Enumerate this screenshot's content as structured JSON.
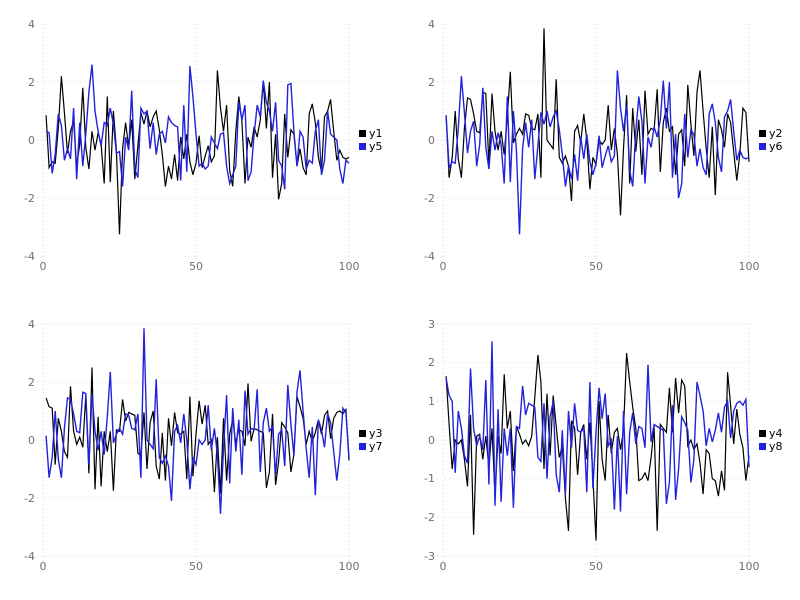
{
  "palette": {
    "background": "#ffffff",
    "series_black": "#000000",
    "series_blue": "#2222dd",
    "grid_color": "#d8d8e2",
    "tick_label_color": "#707070",
    "legend_text_color": "#000000"
  },
  "chart_data": [
    {
      "type": "line",
      "position": "top-left",
      "title": "",
      "xlabel": "",
      "ylabel": "",
      "x_range": [
        0,
        100
      ],
      "y_range": [
        -4,
        4
      ],
      "xticks": [
        0,
        50,
        100
      ],
      "yticks": [
        -4,
        -2,
        0,
        2,
        4
      ],
      "grid": true,
      "legend_position": "right-center",
      "x_start": 1,
      "series": [
        {
          "name": "y1",
          "color_key": "series_black",
          "values": [
            0.85,
            -0.95,
            -0.75,
            -0.8,
            0.4,
            2.2,
            0.95,
            -0.45,
            0.3,
            0.65,
            -0.9,
            -0.15,
            1.8,
            -0.25,
            -1.0,
            0.3,
            -0.35,
            0.25,
            -0.15,
            -1.5,
            1.5,
            -1.45,
            1.0,
            -0.35,
            -3.25,
            -0.3,
            0.6,
            -0.25,
            0.7,
            -1.35,
            -0.2,
            0.95,
            0.55,
            1.0,
            0.45,
            0.8,
            1.0,
            0.35,
            -0.5,
            -1.6,
            -0.9,
            -1.35,
            -0.5,
            -1.4,
            0.1,
            -0.65,
            0.2,
            -0.75,
            -1.2,
            -0.8,
            0.15,
            -0.95,
            -0.55,
            -0.2,
            -0.75,
            -0.55,
            2.4,
            1.1,
            0.3,
            1.2,
            -1.05,
            -1.6,
            0.3,
            1.5,
            0.65,
            -1.5,
            0.1,
            -0.25,
            0.45,
            0.1,
            0.7,
            2.0,
            0.4,
            2.0,
            -1.3,
            0.2,
            -2.05,
            -1.5,
            0.9,
            -0.6,
            0.35,
            0.2,
            -0.9,
            -0.3,
            -0.95,
            -1.2,
            0.9,
            1.25,
            0.6,
            -0.6,
            -1.1,
            0.8,
            1.0,
            1.4,
            0.3,
            -0.7,
            -0.35,
            -0.6,
            -0.65,
            -0.6
          ]
        },
        {
          "name": "y5",
          "color_key": "series_blue",
          "values": [
            0.3,
            0.25,
            -1.15,
            -0.5,
            0.9,
            0.5,
            -0.7,
            -0.3,
            -0.65,
            1.1,
            -1.35,
            0.6,
            -0.9,
            0.2,
            1.65,
            2.6,
            1.0,
            0.3,
            -0.2,
            0.6,
            0.5,
            1.1,
            0.55,
            -0.45,
            -0.4,
            -1.6,
            0.1,
            -0.35,
            1.7,
            -1.0,
            -1.3,
            1.1,
            0.9,
            1.0,
            -0.3,
            0.6,
            -0.5,
            0.2,
            0.3,
            -0.1,
            0.8,
            0.6,
            0.5,
            0.45,
            -1.4,
            1.2,
            -1.1,
            2.55,
            1.5,
            0.2,
            -0.9,
            -0.8,
            -1.0,
            -0.9,
            0.1,
            -0.1,
            -0.3,
            0.2,
            0.25,
            -0.9,
            -1.5,
            -1.2,
            -0.9,
            1.3,
            0.7,
            1.2,
            -1.4,
            -1.1,
            0.2,
            1.2,
            0.8,
            2.05,
            1.3,
            1.0,
            0.3,
            1.3,
            -0.7,
            -0.9,
            -1.7,
            1.9,
            1.95,
            0.3,
            -0.9,
            0.3,
            0.1,
            -1.0,
            -0.7,
            -0.8,
            0.3,
            0.7,
            -1.2,
            -0.7,
            1.0,
            0.2,
            0.1,
            0.0,
            -1.0,
            -1.5,
            -0.7,
            -0.8
          ]
        }
      ]
    },
    {
      "type": "line",
      "position": "top-right",
      "title": "",
      "xlabel": "",
      "ylabel": "",
      "x_range": [
        0,
        100
      ],
      "y_range": [
        -4,
        4
      ],
      "xticks": [
        0,
        50,
        100
      ],
      "yticks": [
        -4,
        -2,
        0,
        2,
        4
      ],
      "grid": true,
      "legend_position": "right-center",
      "x_start": 1,
      "series": [
        {
          "name": "y2",
          "color_key": "series_black",
          "values": [
            0.85,
            -1.3,
            -0.6,
            1.0,
            -0.65,
            -1.3,
            0.4,
            1.45,
            1.4,
            0.9,
            0.3,
            0.25,
            1.65,
            1.6,
            -0.85,
            1.6,
            0.3,
            -0.35,
            0.3,
            -0.5,
            0.8,
            2.35,
            -0.1,
            0.2,
            0.4,
            0.2,
            0.9,
            0.85,
            0.4,
            0.35,
            0.9,
            -1.3,
            3.85,
            0.0,
            -0.15,
            -0.3,
            2.1,
            -0.6,
            -0.8,
            -0.55,
            -0.9,
            -2.1,
            0.3,
            0.5,
            -0.1,
            0.9,
            0.0,
            -1.7,
            -0.6,
            -0.85,
            0.0,
            -0.15,
            0.0,
            1.2,
            -0.35,
            0.4,
            -0.5,
            -2.6,
            -0.3,
            1.55,
            -1.5,
            1.1,
            -0.4,
            0.7,
            -1.2,
            1.7,
            0.2,
            0.4,
            0.35,
            1.75,
            -1.1,
            0.6,
            1.1,
            0.3,
            0.45,
            -1.2,
            0.2,
            0.35,
            -0.9,
            1.9,
            0.55,
            -0.55,
            1.65,
            2.4,
            1.0,
            -0.3,
            -1.3,
            0.45,
            -1.9,
            0.7,
            0.35,
            -0.25,
            0.9,
            0.6,
            -0.4,
            -1.4,
            -0.5,
            1.1,
            0.95,
            -0.75
          ]
        },
        {
          "name": "y6",
          "color_key": "series_blue",
          "values": [
            0.85,
            -0.95,
            -0.75,
            -0.8,
            0.4,
            2.2,
            0.95,
            -0.45,
            0.3,
            0.65,
            -0.9,
            -0.15,
            1.8,
            -0.25,
            -1.0,
            0.3,
            -0.35,
            0.25,
            -0.15,
            -1.5,
            1.5,
            -1.45,
            1.0,
            -0.35,
            -3.25,
            -0.3,
            0.6,
            -0.25,
            0.7,
            -1.35,
            -0.2,
            0.95,
            0.55,
            1.0,
            0.45,
            0.8,
            1.0,
            0.35,
            -0.5,
            -1.6,
            -0.9,
            -1.35,
            -0.5,
            -1.4,
            0.1,
            -0.65,
            0.2,
            -0.75,
            -1.2,
            -0.8,
            0.15,
            -0.95,
            -0.55,
            -0.2,
            -0.75,
            -0.55,
            2.4,
            1.1,
            0.3,
            1.2,
            -1.05,
            -1.6,
            0.3,
            1.5,
            0.65,
            -1.5,
            0.1,
            -0.25,
            0.45,
            0.1,
            0.7,
            2.05,
            0.4,
            2.0,
            -1.3,
            0.2,
            -2.0,
            -1.5,
            0.9,
            -0.6,
            0.35,
            0.2,
            -0.9,
            -0.3,
            -0.95,
            -1.2,
            0.9,
            1.25,
            0.6,
            -0.6,
            -1.1,
            0.8,
            1.0,
            1.4,
            0.3,
            -0.7,
            -0.35,
            -0.6,
            -0.65,
            -0.6
          ]
        }
      ]
    },
    {
      "type": "line",
      "position": "bottom-left",
      "title": "",
      "xlabel": "",
      "ylabel": "",
      "x_range": [
        0,
        100
      ],
      "y_range": [
        -4,
        4
      ],
      "xticks": [
        0,
        50,
        100
      ],
      "yticks": [
        -4,
        -2,
        0,
        2,
        4
      ],
      "grid": true,
      "legend_position": "right-center",
      "x_start": 1,
      "series": [
        {
          "name": "y3",
          "color_key": "series_black",
          "values": [
            1.45,
            1.15,
            1.1,
            -0.85,
            0.75,
            0.3,
            -0.4,
            -0.6,
            1.85,
            0.3,
            -0.15,
            0.1,
            -0.25,
            1.55,
            -1.15,
            2.5,
            -1.7,
            0.8,
            -1.6,
            0.3,
            -0.4,
            0.3,
            -1.75,
            0.35,
            0.3,
            1.4,
            0.65,
            0.95,
            0.9,
            0.85,
            -0.45,
            -0.55,
            0.95,
            -1.0,
            0.6,
            1.0,
            -0.9,
            -1.35,
            0.25,
            -1.4,
            0.75,
            -0.2,
            0.95,
            0.25,
            0.2,
            0.3,
            -1.35,
            1.5,
            -1.25,
            0.2,
            1.35,
            0.55,
            1.2,
            -0.15,
            0.0,
            -1.8,
            0.1,
            -1.85,
            0.75,
            -1.4,
            0.2,
            0.7,
            -0.1,
            0.35,
            0.3,
            -0.2,
            1.95,
            -0.05,
            0.4,
            0.35,
            0.3,
            0.25,
            -1.65,
            -1.1,
            0.9,
            -1.55,
            -0.75,
            0.6,
            0.45,
            0.25,
            -1.1,
            -0.5,
            1.5,
            1.15,
            0.75,
            -0.15,
            0.3,
            -0.05,
            0.25,
            0.7,
            0.2,
            0.85,
            1.0,
            0.05,
            0.75,
            0.95,
            1.0,
            0.9,
            1.05,
            -0.7
          ]
        },
        {
          "name": "y7",
          "color_key": "series_blue",
          "values": [
            0.15,
            -1.3,
            -0.6,
            1.0,
            -0.65,
            -1.3,
            0.4,
            1.45,
            1.4,
            0.9,
            0.3,
            0.25,
            1.65,
            1.6,
            -0.85,
            1.6,
            0.3,
            -0.35,
            0.3,
            -0.5,
            0.8,
            2.35,
            -0.1,
            0.2,
            0.4,
            0.2,
            0.9,
            0.85,
            0.4,
            0.35,
            0.9,
            -1.3,
            3.85,
            0.0,
            -0.15,
            -0.3,
            2.1,
            -0.6,
            -0.8,
            -0.55,
            -0.9,
            -2.1,
            0.3,
            0.5,
            -0.1,
            0.9,
            0.0,
            -1.7,
            -0.6,
            -0.85,
            0.0,
            -0.15,
            0.0,
            1.2,
            -0.35,
            0.4,
            -0.5,
            -2.55,
            -0.3,
            1.55,
            -1.5,
            1.1,
            -0.4,
            0.7,
            -1.2,
            1.7,
            0.2,
            0.4,
            0.35,
            1.75,
            -1.1,
            0.6,
            1.1,
            0.3,
            0.45,
            -1.2,
            0.2,
            0.35,
            -0.9,
            1.9,
            0.55,
            -0.55,
            1.65,
            2.4,
            1.0,
            -0.3,
            -1.3,
            0.45,
            -1.9,
            0.7,
            0.35,
            -0.25,
            0.9,
            0.6,
            -0.4,
            -1.4,
            -0.5,
            1.1,
            0.95,
            -0.6
          ]
        }
      ]
    },
    {
      "type": "line",
      "position": "bottom-right",
      "title": "",
      "xlabel": "",
      "ylabel": "",
      "x_range": [
        0,
        100
      ],
      "y_range": [
        -3,
        3
      ],
      "xticks": [
        0,
        50,
        100
      ],
      "yticks": [
        -3,
        -2,
        -1,
        0,
        1,
        2,
        3
      ],
      "grid": true,
      "legend_position": "right-center",
      "x_start": 1,
      "series": [
        {
          "name": "y4",
          "color_key": "series_black",
          "values": [
            1.65,
            0.4,
            -0.75,
            0.0,
            -0.1,
            0.0,
            -0.5,
            -1.2,
            0.65,
            -2.45,
            0.1,
            0.15,
            -0.5,
            0.1,
            -0.7,
            0.3,
            -1.45,
            0.1,
            -0.35,
            1.7,
            0.3,
            0.75,
            -0.8,
            0.35,
            0.15,
            -0.1,
            0.0,
            -0.15,
            0.1,
            1.1,
            2.2,
            1.5,
            -0.75,
            1.2,
            -0.4,
            1.15,
            0.35,
            -0.45,
            -0.15,
            -1.5,
            -2.35,
            0.5,
            0.3,
            -0.9,
            0.2,
            0.4,
            -0.5,
            0.45,
            -0.95,
            -2.6,
            1.0,
            -0.5,
            -1.05,
            0.65,
            -0.35,
            0.2,
            0.3,
            -0.25,
            0.25,
            2.25,
            1.5,
            0.85,
            0.3,
            -1.05,
            -1.0,
            -0.85,
            -1.05,
            -0.45,
            0.35,
            -2.35,
            0.4,
            0.3,
            0.2,
            1.35,
            0.2,
            1.6,
            0.7,
            1.55,
            1.4,
            -0.15,
            0.0,
            -0.25,
            -0.1,
            -0.6,
            -1.4,
            -0.25,
            -0.35,
            -1.0,
            -1.05,
            -1.45,
            -0.8,
            -1.3,
            1.75,
            0.9,
            -0.1,
            0.8,
            0.15,
            -0.2,
            -1.05,
            -0.4
          ]
        },
        {
          "name": "y8",
          "color_key": "series_blue",
          "values": [
            1.6,
            1.15,
            1.0,
            -0.85,
            0.75,
            0.3,
            -0.4,
            -0.6,
            1.85,
            0.3,
            -0.15,
            0.1,
            -0.25,
            1.55,
            -1.15,
            2.55,
            -1.7,
            0.8,
            -1.6,
            0.3,
            -0.4,
            0.3,
            -1.75,
            0.35,
            0.3,
            1.4,
            0.65,
            0.95,
            0.9,
            0.85,
            -0.45,
            -0.55,
            0.95,
            -1.0,
            0.6,
            1.0,
            -0.9,
            -1.35,
            0.25,
            -1.4,
            0.75,
            -0.2,
            0.95,
            0.25,
            0.2,
            0.3,
            -1.35,
            1.5,
            -1.25,
            0.2,
            1.35,
            0.55,
            1.2,
            -0.15,
            0.0,
            -1.8,
            0.1,
            -1.85,
            0.75,
            -1.4,
            0.2,
            0.7,
            -0.1,
            0.35,
            0.3,
            -0.2,
            1.95,
            -0.05,
            0.4,
            0.35,
            0.3,
            0.25,
            -1.65,
            -1.1,
            0.9,
            -1.55,
            -0.75,
            0.6,
            0.45,
            0.25,
            -1.1,
            -0.5,
            1.5,
            1.15,
            0.75,
            -0.15,
            0.3,
            -0.05,
            0.25,
            0.7,
            0.2,
            0.85,
            1.0,
            0.05,
            0.75,
            0.95,
            1.0,
            0.9,
            1.05,
            -0.7
          ]
        }
      ]
    }
  ]
}
